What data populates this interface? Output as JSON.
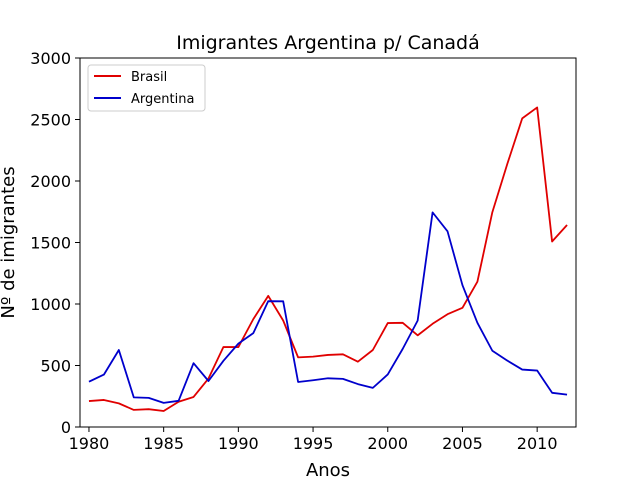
{
  "chart_data": {
    "type": "line",
    "title": "Imigrantes Argentina p/ Canadá",
    "xlabel": "Anos",
    "ylabel": "Nº de imigrantes",
    "xlim": [
      1979.4,
      2012.6
    ],
    "ylim": [
      0,
      3000
    ],
    "xticks": [
      1980,
      1985,
      1990,
      1995,
      2000,
      2005,
      2010
    ],
    "yticks": [
      0,
      500,
      1000,
      1500,
      2000,
      2500,
      3000
    ],
    "grid": false,
    "legend_position": "upper-left",
    "x": [
      1980,
      1981,
      1982,
      1983,
      1984,
      1985,
      1986,
      1987,
      1988,
      1989,
      1990,
      1991,
      1992,
      1993,
      1994,
      1995,
      1996,
      1997,
      1998,
      1999,
      2000,
      2001,
      2002,
      2003,
      2004,
      2005,
      2006,
      2007,
      2008,
      2009,
      2010,
      2011,
      2012
    ],
    "series": [
      {
        "name": "Brasil",
        "color": "#e00000",
        "values": [
          211,
          220,
          192,
          139,
          145,
          130,
          205,
          244,
          394,
          650,
          650,
          877,
          1066,
          866,
          566,
          572,
          586,
          591,
          531,
          626,
          845,
          847,
          745,
          839,
          917,
          969,
          1181,
          1746,
          2138,
          2509,
          2598,
          1508,
          1642
        ]
      },
      {
        "name": "Argentina",
        "color": "#0000cc",
        "values": [
          368,
          426,
          626,
          241,
          237,
          196,
          213,
          519,
          374,
          538,
          678,
          763,
          1023,
          1022,
          366,
          380,
          396,
          391,
          349,
          318,
          427,
          635,
          865,
          1745,
          1591,
          1153,
          847,
          620,
          540,
          467,
          459,
          278,
          263
        ]
      }
    ]
  }
}
